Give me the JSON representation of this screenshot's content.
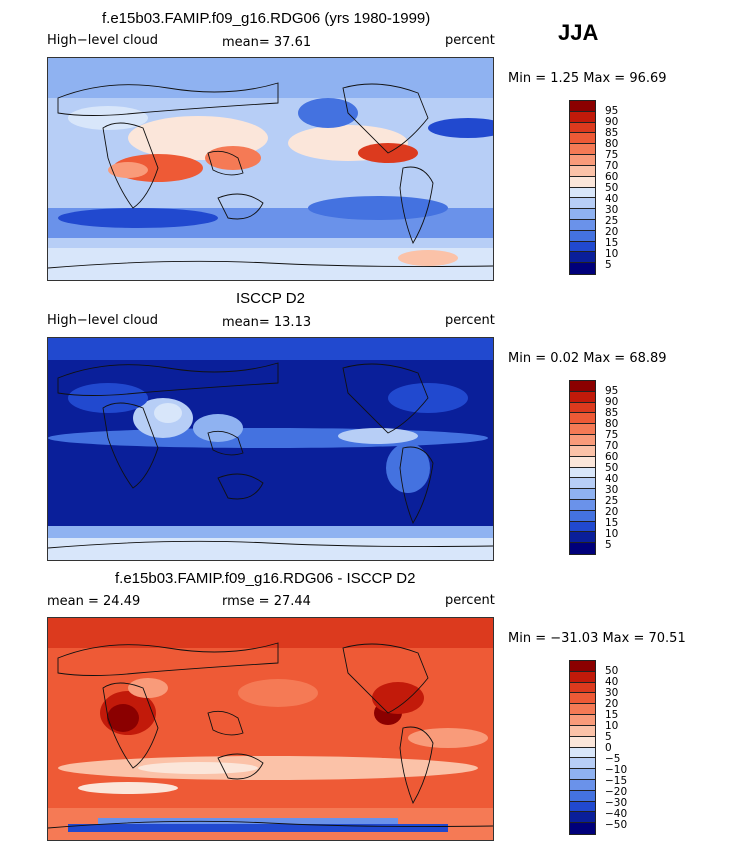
{
  "season": "JJA",
  "levels_abs": [
    "95",
    "90",
    "85",
    "80",
    "75",
    "70",
    "60",
    "50",
    "40",
    "30",
    "25",
    "20",
    "15",
    "10",
    "5"
  ],
  "levels_diff": [
    "50",
    "40",
    "30",
    "20",
    "15",
    "10",
    "5",
    "0",
    "−5",
    "−10",
    "−15",
    "−20",
    "−30",
    "−40",
    "−50"
  ],
  "colors": [
    "#8b0000",
    "#c21a0a",
    "#dc3a1e",
    "#ee5a36",
    "#f57a55",
    "#f99b7a",
    "#fbc2a8",
    "#fbe6da",
    "#d8e6fa",
    "#b7cef6",
    "#8fb2f1",
    "#6a92ea",
    "#4472e0",
    "#2149cf",
    "#0a1f9a",
    "#00007a"
  ],
  "panels": [
    {
      "title": "f.e15b03.FAMIP.f09_g16.RDG06 (yrs 1980-1999)",
      "left_label": "High−level cloud",
      "mean_label": "mean=  37.61",
      "units": "percent",
      "range": "Min =    1.25 Max =  96.69"
    },
    {
      "title": "ISCCP D2",
      "left_label": "High−level cloud",
      "mean_label": "mean=  13.13",
      "units": "percent",
      "range": "Min =    0.02 Max =  68.89"
    },
    {
      "title": "f.e15b03.FAMIP.f09_g16.RDG06 - ISCCP D2",
      "left_label": "mean =  24.49",
      "mean_label": "rmse =  27.44",
      "units": "percent",
      "range": "Min = −31.03 Max =  70.51"
    }
  ]
}
